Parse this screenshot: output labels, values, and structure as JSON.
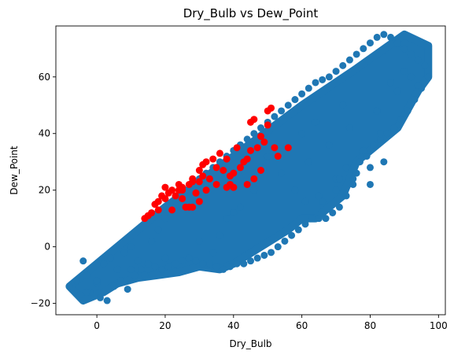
{
  "chart_data": {
    "type": "scatter",
    "title": "Dry_Bulb vs Dew_Point",
    "xlabel": "Dry_Bulb",
    "ylabel": "Dew_Point",
    "xlim": [
      -12,
      102
    ],
    "ylim": [
      -24,
      78
    ],
    "xticks": [
      0,
      20,
      40,
      60,
      80,
      100
    ],
    "yticks": [
      -20,
      0,
      20,
      40,
      60
    ],
    "xtick_labels": [
      "0",
      "20",
      "40",
      "60",
      "80",
      "100"
    ],
    "ytick_labels": [
      "−20",
      "0",
      "20",
      "40",
      "60"
    ],
    "grid": false,
    "legend": "none",
    "colors": {
      "all_points": "#1f77b4",
      "highlighted_points": "#ff0000"
    },
    "band_polygon": {
      "description_hidden": true,
      "x": [
        -8,
        0,
        20,
        40,
        60,
        76,
        90,
        97,
        97,
        94,
        88,
        82,
        76,
        72,
        68,
        64,
        60,
        56,
        52,
        48,
        44,
        40,
        36,
        30,
        24,
        18,
        12,
        6,
        2,
        -4,
        -8
      ],
      "y": [
        -14,
        -6,
        14,
        32,
        50,
        63,
        75,
        71,
        60,
        55,
        42,
        36,
        30,
        18,
        14,
        10,
        10,
        6,
        3,
        0,
        -3,
        -6,
        -8,
        -7,
        -9,
        -10,
        -11,
        -13,
        -16,
        -19,
        -14
      ]
    },
    "series": [
      {
        "role": "all_observations",
        "x": [
          -8,
          -6,
          -4,
          -5,
          -3,
          -2,
          0,
          2,
          4,
          5,
          3,
          1,
          6,
          8,
          10,
          12,
          9,
          14,
          16,
          18,
          20,
          22,
          24,
          26,
          28,
          30,
          32,
          34,
          36,
          38,
          40,
          42,
          44,
          46,
          48,
          50,
          52,
          54,
          56,
          58,
          60,
          62,
          64,
          66,
          68,
          70,
          72,
          74,
          76,
          78,
          80,
          82,
          84,
          86,
          88,
          90,
          92,
          94,
          96,
          97,
          95,
          93,
          91,
          89,
          87,
          85,
          83,
          81,
          79,
          77,
          75,
          73,
          71,
          69,
          67,
          65,
          63,
          61,
          59,
          57,
          55,
          53,
          51,
          49,
          47,
          45,
          43,
          41,
          39,
          37,
          35,
          33,
          31,
          29,
          27,
          25,
          23,
          21,
          19,
          17,
          15,
          13,
          11,
          7,
          62,
          68,
          74,
          82,
          88,
          92,
          80,
          84,
          76,
          70,
          66,
          58,
          54,
          50,
          46,
          42,
          38,
          36,
          34,
          60,
          64,
          72,
          86,
          90,
          94,
          56,
          48,
          44,
          40,
          30,
          20,
          10,
          0,
          -3,
          78,
          83,
          70,
          65,
          80,
          71,
          75,
          81,
          73,
          61
        ],
        "y": [
          -14,
          -12,
          -5,
          -17,
          -10,
          -16,
          -13,
          -6,
          -4,
          -14,
          -19,
          -18,
          -8,
          -2,
          0,
          -5,
          -15,
          -10,
          2,
          6,
          10,
          14,
          17,
          20,
          22,
          24,
          26,
          28,
          30,
          32,
          34,
          36,
          38,
          40,
          42,
          44,
          46,
          48,
          50,
          52,
          54,
          56,
          58,
          59,
          60,
          62,
          64,
          66,
          68,
          70,
          72,
          74,
          75,
          74,
          72,
          70,
          68,
          66,
          64,
          60,
          56,
          52,
          48,
          45,
          42,
          40,
          38,
          35,
          32,
          30,
          24,
          18,
          14,
          12,
          10,
          10,
          10,
          8,
          6,
          4,
          2,
          0,
          -2,
          -3,
          -4,
          -5,
          -6,
          -6,
          -7,
          -8,
          -7,
          -6,
          -6,
          -5,
          -4,
          -5,
          -6,
          -7,
          -8,
          -7,
          -6,
          -8,
          -10,
          -12,
          30,
          36,
          42,
          48,
          55,
          60,
          22,
          30,
          26,
          20,
          16,
          20,
          26,
          32,
          20,
          14,
          10,
          4,
          -2,
          40,
          44,
          50,
          58,
          62,
          57,
          36,
          28,
          22,
          12,
          2,
          -4,
          -8,
          -12,
          -16,
          34,
          40,
          24,
          18,
          28,
          24,
          22,
          36,
          28,
          16
        ]
      },
      {
        "role": "highlighted",
        "x": [
          14,
          15,
          16,
          17,
          18,
          19,
          20,
          21,
          22,
          22,
          23,
          24,
          25,
          25,
          26,
          27,
          28,
          28,
          29,
          30,
          30,
          31,
          32,
          32,
          33,
          34,
          35,
          35,
          36,
          37,
          38,
          38,
          39,
          40,
          40,
          41,
          42,
          43,
          44,
          45,
          45,
          46,
          47,
          48,
          49,
          50,
          50,
          51,
          52,
          53,
          56,
          44,
          46,
          48,
          39,
          40,
          30,
          27,
          29,
          25,
          24,
          20,
          18,
          31,
          28
        ],
        "y": [
          10,
          11,
          12,
          15,
          16,
          18,
          17,
          19,
          20,
          13,
          18,
          20,
          21,
          17,
          14,
          22,
          24,
          14,
          19,
          23,
          27,
          29,
          20,
          30,
          24,
          31,
          28,
          22,
          33,
          27,
          31,
          21,
          25,
          26,
          21,
          35,
          28,
          30,
          31,
          34,
          44,
          45,
          35,
          39,
          37,
          43,
          48,
          49,
          35,
          32,
          35,
          22,
          24,
          27,
          22,
          21,
          16,
          14,
          19,
          20,
          22,
          21,
          13,
          25,
          23
        ]
      }
    ]
  }
}
